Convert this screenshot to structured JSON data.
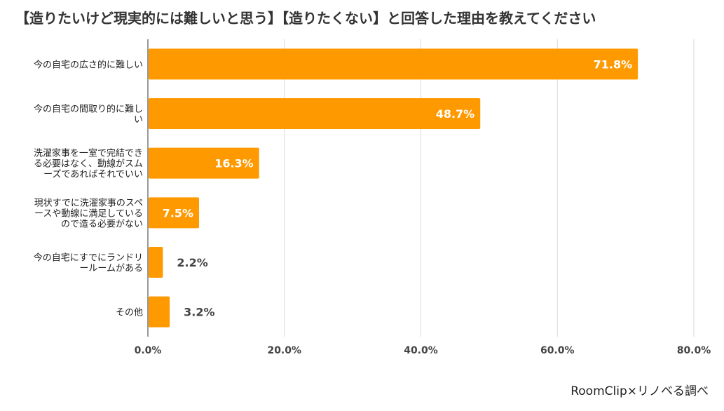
{
  "chart_data": {
    "type": "bar",
    "orientation": "horizontal",
    "title": "【造りたいけど現実的には難しいと思う】【造りたくない】と回答した理由を教えてください",
    "categories": [
      [
        "今の自宅の広さ的に難しい"
      ],
      [
        "今の自宅の間取り的に難し",
        "い"
      ],
      [
        "洗濯家事を一室で完結でき",
        "る必要はなく、動線がスム",
        "ーズであればそれでいい"
      ],
      [
        "現状すでに洗濯家事のスペ",
        "ースや動線に満足している",
        "ので造る必要がない"
      ],
      [
        "今の自宅にすでにランドリ",
        "ールームがある"
      ],
      [
        "その他"
      ]
    ],
    "values": [
      71.8,
      48.7,
      16.3,
      7.5,
      2.2,
      3.2
    ],
    "value_labels": [
      "71.8%",
      "48.7%",
      "16.3%",
      "7.5%",
      "2.2%",
      "3.2%"
    ],
    "xlim": [
      0,
      80
    ],
    "xticks": [
      "0.0%",
      "20.0%",
      "40.0%",
      "60.0%",
      "80.0%"
    ],
    "grid": true,
    "bar_color": "#ff9900"
  },
  "source": "RoomClip×リノベる調べ"
}
